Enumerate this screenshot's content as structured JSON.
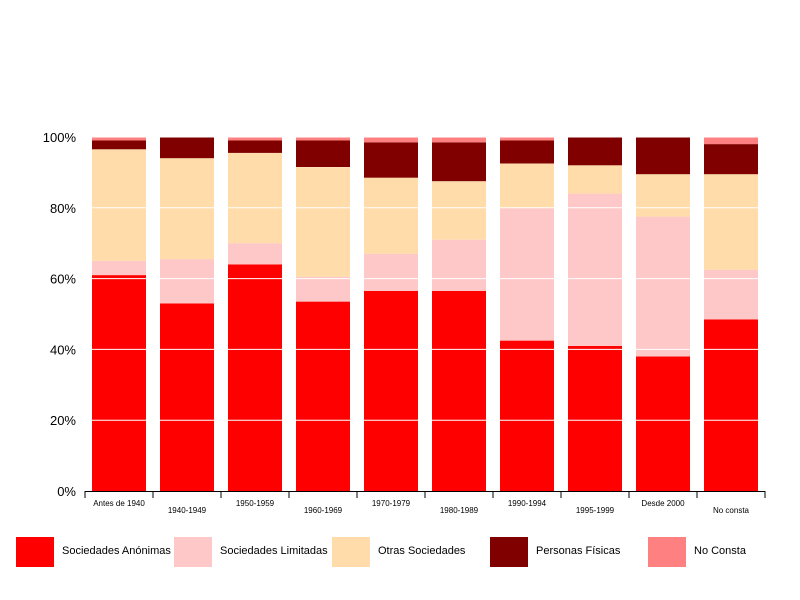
{
  "chart_data": {
    "type": "bar",
    "stacked": true,
    "normalized": true,
    "categories": [
      "Antes de 1940",
      "1940-1949",
      "1950-1959",
      "1960-1969",
      "1970-1979",
      "1980-1989",
      "1990-1994",
      "1995-1999",
      "Desde 2000",
      "No consta"
    ],
    "series": [
      {
        "name": "Sociedades Anónimas",
        "color": "#ff0000",
        "values": [
          61,
          53,
          64,
          53.5,
          56.5,
          56.5,
          42.5,
          41,
          38,
          48.5
        ]
      },
      {
        "name": "Sociedades Limitadas",
        "color": "#ffc8c8",
        "values": [
          4,
          12.5,
          6,
          7,
          10.5,
          14.5,
          37.5,
          43,
          39.5,
          14
        ]
      },
      {
        "name": "Otras Sociedades",
        "color": "#ffdcaa",
        "values": [
          31.5,
          28.5,
          25.5,
          31,
          21.5,
          16.5,
          12.5,
          8,
          12,
          27
        ]
      },
      {
        "name": "Personas Físicas",
        "color": "#800000",
        "values": [
          2.5,
          6,
          3.5,
          7.5,
          10,
          11,
          6.5,
          8,
          10.5,
          8.5
        ]
      },
      {
        "name": "No Consta",
        "color": "#ff8080",
        "values": [
          1,
          0,
          1,
          1,
          1.5,
          1.5,
          1,
          0,
          0,
          2
        ]
      }
    ],
    "y_ticks": [
      "0%",
      "20%",
      "40%",
      "60%",
      "80%",
      "100%"
    ],
    "ylim": [
      0,
      100
    ],
    "grid": true,
    "legend_position": "bottom"
  }
}
